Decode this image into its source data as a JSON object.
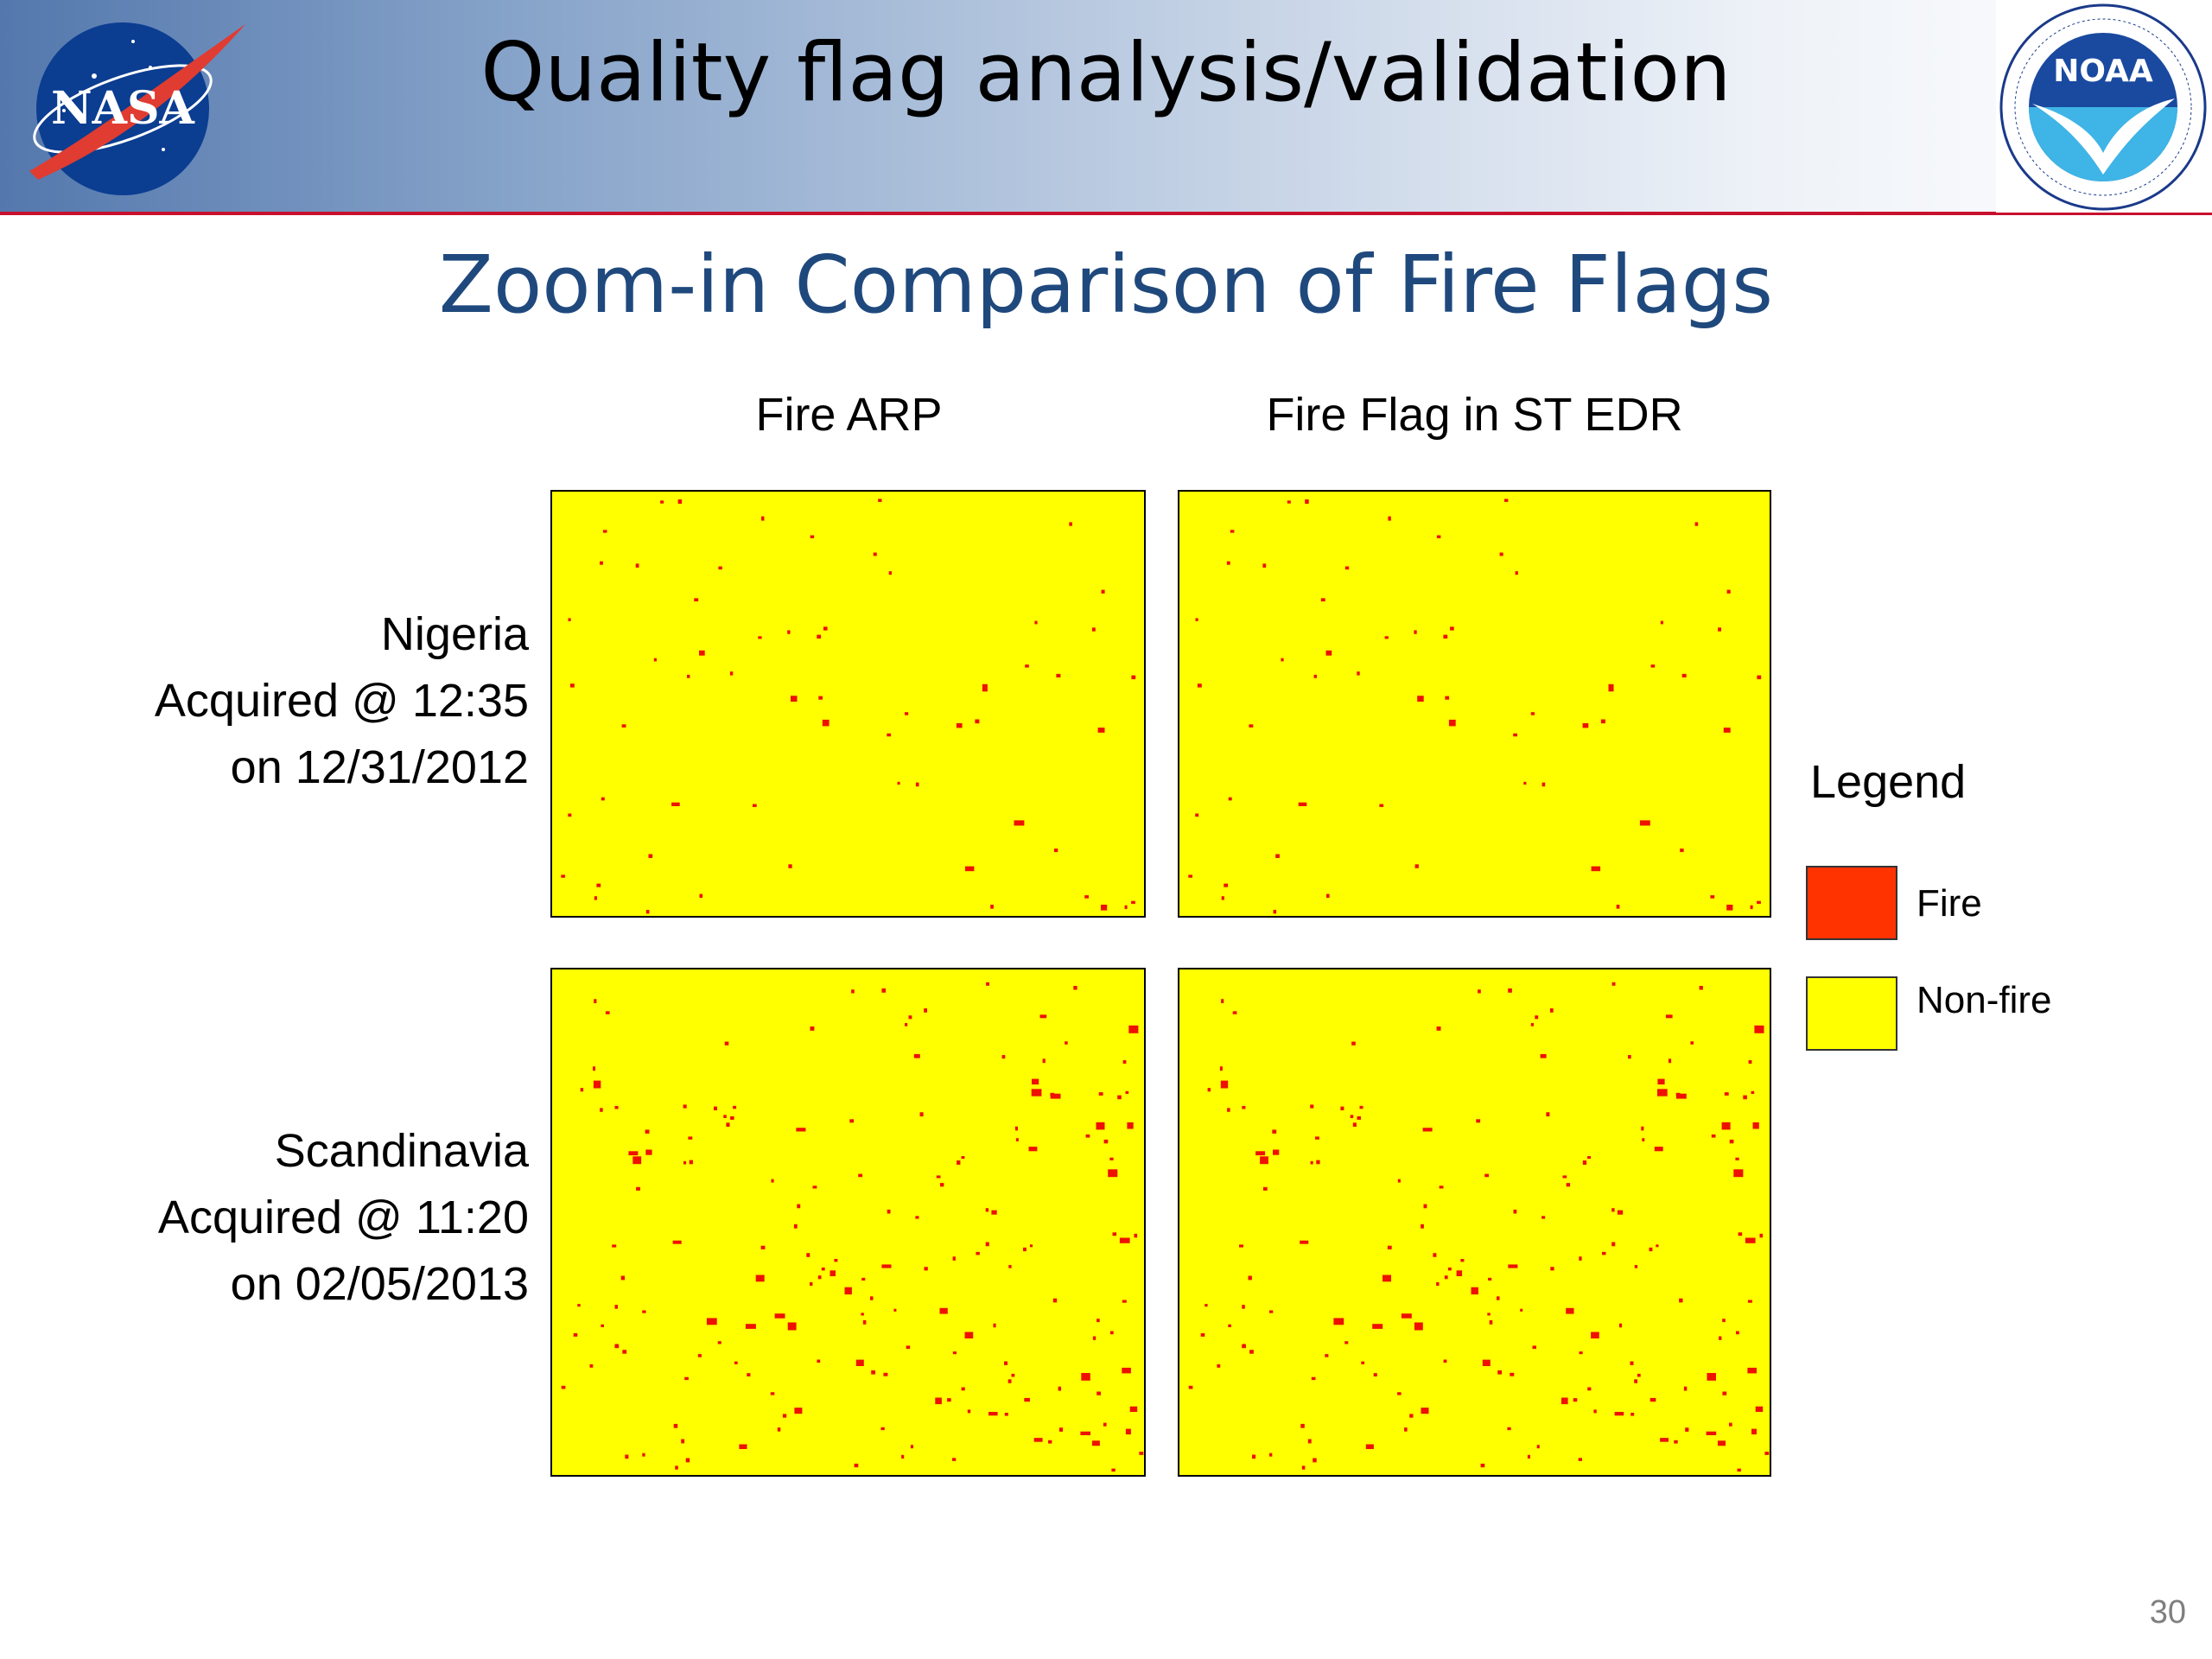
{
  "header": {
    "title": "Quality flag analysis/validation",
    "left_logo": {
      "icon": "nasa-logo",
      "text": "NASA"
    },
    "right_logo": {
      "icon": "noaa-logo",
      "text": "NOAA"
    }
  },
  "slide_title": "Zoom-in Comparison of Fire Flags",
  "columns": [
    "Fire ARP",
    "Fire Flag in ST EDR"
  ],
  "rows": [
    {
      "name": "Nigeria",
      "acquired": "Acquired @ 12:35",
      "date": "on 12/31/2012"
    },
    {
      "name": "Scandinavia",
      "acquired": "Acquired @ 11:20",
      "date": "on 02/05/2013"
    }
  ],
  "legend": {
    "title": "Legend",
    "items": [
      {
        "label": "Fire",
        "color": "#ff3300"
      },
      {
        "label": "Non-fire",
        "color": "#ffff00"
      }
    ]
  },
  "colors": {
    "fire_pixel": "#ee1100",
    "non_fire": "#ffff00",
    "title_blue": "#1f497d",
    "header_rule": "#c8102e"
  },
  "page_number": "30"
}
